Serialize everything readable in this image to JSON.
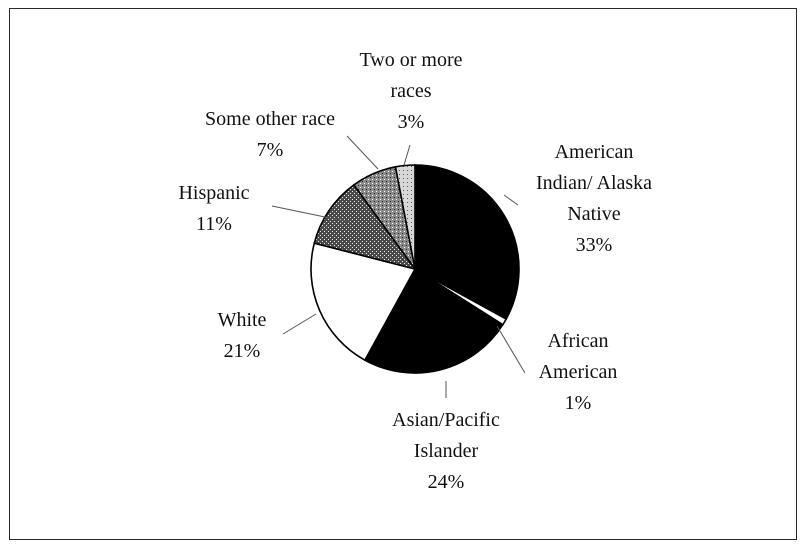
{
  "chart_data": {
    "type": "pie",
    "title": "",
    "slices": [
      {
        "name": "American Indian/ Alaska Native",
        "label_lines": [
          "American",
          "Indian/ Alaska",
          "Native"
        ],
        "pct_label": "33%",
        "value": 33,
        "fill": "#000000"
      },
      {
        "name": "African American",
        "label_lines": [
          "African",
          "American"
        ],
        "pct_label": "1%",
        "value": 1,
        "fill": "#ffffff"
      },
      {
        "name": "Asian/Pacific Islander",
        "label_lines": [
          "Asian/Pacific",
          "Islander"
        ],
        "pct_label": "24%",
        "value": 24,
        "fill": "#000000"
      },
      {
        "name": "White",
        "label_lines": [
          "White"
        ],
        "pct_label": "21%",
        "value": 21,
        "fill": "#ffffff"
      },
      {
        "name": "Hispanic",
        "label_lines": [
          "Hispanic"
        ],
        "pct_label": "11%",
        "value": 11,
        "fill": "pattern-dense"
      },
      {
        "name": "Some other race",
        "label_lines": [
          "Some other race"
        ],
        "pct_label": "7%",
        "value": 7,
        "fill": "pattern-sparse"
      },
      {
        "name": "Two or more races",
        "label_lines": [
          "Two or more",
          "races"
        ],
        "pct_label": "3%",
        "value": 3,
        "fill": "pattern-light"
      }
    ],
    "legend": "none"
  }
}
